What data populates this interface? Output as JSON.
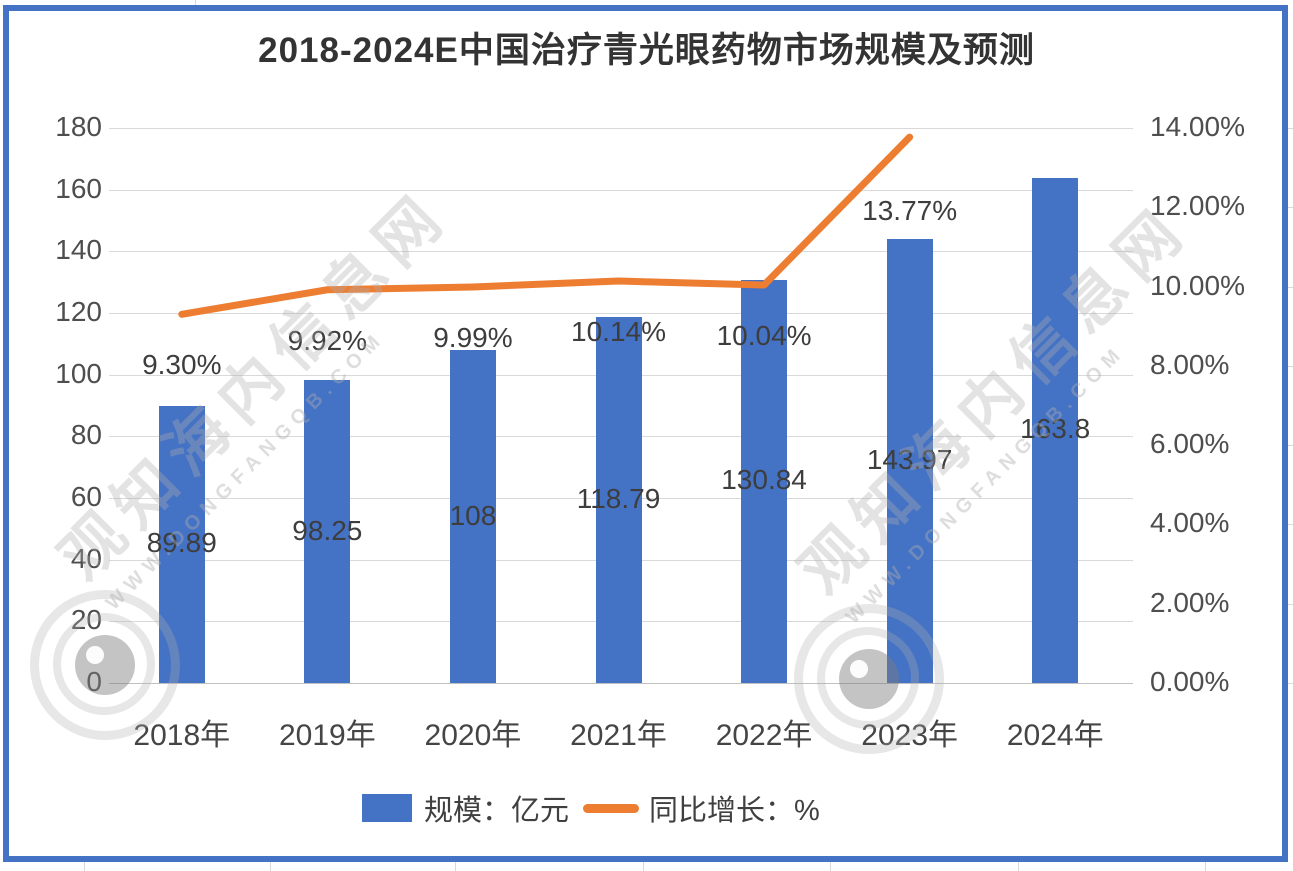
{
  "title": "2018-2024E中国治疗青光眼药物市场规模及预测",
  "watermark": {
    "cn": "观知海内信息网",
    "url": "WWW.DONGFANGQB.COM"
  },
  "legend": [
    {
      "label": "规模：亿元",
      "type": "bar",
      "color": "#4472C4"
    },
    {
      "label": "同比增长：%",
      "type": "line",
      "color": "#ED7D31"
    }
  ],
  "chart_data": {
    "type": "bar+line",
    "title": "2018-2024E中国治疗青光眼药物市场规模及预测",
    "categories": [
      "2018年",
      "2019年",
      "2020年",
      "2021年",
      "2022年",
      "2023年",
      "2024年"
    ],
    "series": [
      {
        "name": "规模：亿元",
        "type": "bar",
        "color": "#4472C4",
        "values": [
          89.89,
          98.25,
          108,
          118.79,
          130.84,
          143.97,
          163.8
        ],
        "labels": [
          "89.89",
          "98.25",
          "108",
          "118.79",
          "130.84",
          "143.97",
          "163.8"
        ],
        "label_position": "center"
      },
      {
        "name": "同比增长：%",
        "type": "line",
        "color": "#ED7D31",
        "values": [
          9.3,
          9.92,
          9.99,
          10.14,
          10.04,
          13.77
        ],
        "labels": [
          "9.30%",
          "9.92%",
          "9.99%",
          "10.14%",
          "10.04%",
          "13.77%"
        ],
        "label_position": "below"
      }
    ],
    "left_axis": {
      "min": 0,
      "max": 180,
      "step": 20,
      "ticks": [
        "0",
        "20",
        "40",
        "60",
        "80",
        "100",
        "120",
        "140",
        "160",
        "180"
      ]
    },
    "right_axis": {
      "min": 0,
      "max": 14,
      "step": 2,
      "ticks": [
        "0.00%",
        "2.00%",
        "4.00%",
        "6.00%",
        "8.00%",
        "10.00%",
        "12.00%",
        "14.00%"
      ]
    },
    "grid": true,
    "legend_position": "bottom"
  }
}
